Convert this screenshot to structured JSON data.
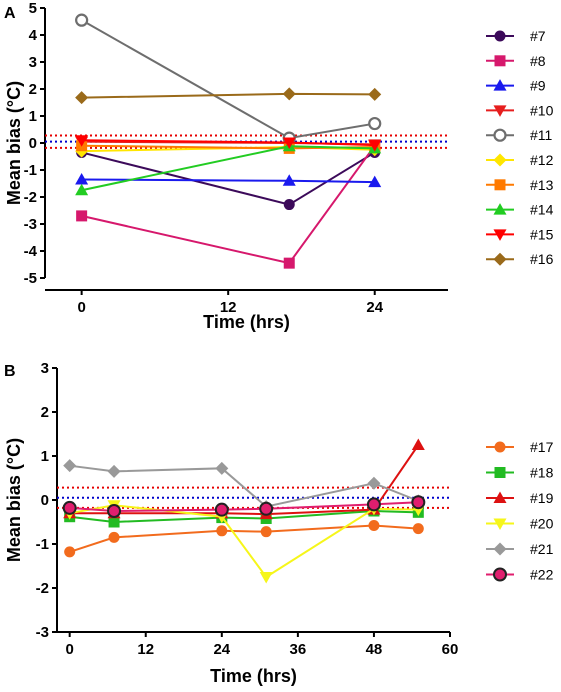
{
  "chart_data": [
    {
      "panel": "A",
      "type": "line",
      "xlabel": "Time (hrs)",
      "ylabel": "Mean bias (°C)",
      "xlim": [
        -3,
        30
      ],
      "ylim": [
        -5,
        5
      ],
      "xticks": [
        0,
        12,
        24
      ],
      "yticks": [
        -5,
        -4,
        -3,
        -2,
        -1,
        0,
        1,
        2,
        3,
        4,
        5
      ],
      "reference_lines": [
        {
          "y": 0.28,
          "color": "#e60000",
          "style": "dotted"
        },
        {
          "y": 0.05,
          "color": "#0000cc",
          "style": "dotted"
        },
        {
          "y": -0.18,
          "color": "#e60000",
          "style": "dotted"
        }
      ],
      "legend_position": "right",
      "series": [
        {
          "name": "#7",
          "color": "#3c0a5a",
          "marker": "circle",
          "x": [
            0,
            17,
            24
          ],
          "values": [
            -0.35,
            -2.28,
            -0.35
          ]
        },
        {
          "name": "#8",
          "color": "#d6186c",
          "marker": "square",
          "x": [
            0,
            17,
            24
          ],
          "values": [
            -2.7,
            -4.45,
            -0.1
          ]
        },
        {
          "name": "#9",
          "color": "#1a1aee",
          "marker": "triangle-up",
          "x": [
            0,
            17,
            24
          ],
          "values": [
            -1.35,
            -1.4,
            -1.45
          ]
        },
        {
          "name": "#10",
          "color": "#e61e1e",
          "marker": "triangle-down",
          "x": [
            0,
            17,
            24
          ],
          "values": [
            0.05,
            0.0,
            -0.05
          ]
        },
        {
          "name": "#11",
          "color": "#6e6e6e",
          "marker": "circle-open",
          "x": [
            0,
            17,
            24
          ],
          "values": [
            4.55,
            0.18,
            0.72
          ]
        },
        {
          "name": "#12",
          "color": "#ffe600",
          "marker": "diamond",
          "x": [
            0,
            17,
            24
          ],
          "values": [
            -0.3,
            -0.15,
            -0.25
          ]
        },
        {
          "name": "#13",
          "color": "#ff7a00",
          "marker": "square",
          "x": [
            0,
            17,
            24
          ],
          "values": [
            -0.1,
            -0.2,
            -0.15
          ]
        },
        {
          "name": "#14",
          "color": "#22cc22",
          "marker": "triangle-up",
          "x": [
            0,
            17,
            24
          ],
          "values": [
            -1.75,
            -0.12,
            -0.2
          ]
        },
        {
          "name": "#15",
          "color": "#ff0000",
          "marker": "triangle-down",
          "x": [
            0,
            17,
            24
          ],
          "values": [
            0.1,
            0.02,
            -0.08
          ]
        },
        {
          "name": "#16",
          "color": "#9a6a1a",
          "marker": "diamond",
          "x": [
            0,
            17,
            24
          ],
          "values": [
            1.68,
            1.82,
            1.8
          ]
        }
      ]
    },
    {
      "panel": "B",
      "type": "line",
      "xlabel": "Time (hrs)",
      "ylabel": "Mean bias (°C)",
      "xlim": [
        -2,
        60
      ],
      "ylim": [
        -3,
        3
      ],
      "xticks": [
        0,
        12,
        24,
        36,
        48,
        60
      ],
      "yticks": [
        -3,
        -2,
        -1,
        0,
        1,
        2,
        3
      ],
      "reference_lines": [
        {
          "y": 0.28,
          "color": "#e60000",
          "style": "dotted"
        },
        {
          "y": 0.05,
          "color": "#0000cc",
          "style": "dotted"
        },
        {
          "y": -0.18,
          "color": "#e60000",
          "style": "dotted"
        }
      ],
      "legend_position": "right",
      "series": [
        {
          "name": "#17",
          "color": "#f26b1d",
          "marker": "circle",
          "x": [
            0,
            7,
            24,
            31,
            48,
            55
          ],
          "values": [
            -1.18,
            -0.85,
            -0.7,
            -0.72,
            -0.58,
            -0.65
          ]
        },
        {
          "name": "#18",
          "color": "#22bb22",
          "marker": "square",
          "x": [
            0,
            7,
            24,
            31,
            48,
            55
          ],
          "values": [
            -0.38,
            -0.5,
            -0.4,
            -0.42,
            -0.25,
            -0.28
          ]
        },
        {
          "name": "#19",
          "color": "#dd1111",
          "marker": "triangle-up",
          "x": [
            0,
            7,
            24,
            31,
            48,
            55
          ],
          "values": [
            -0.3,
            -0.3,
            -0.3,
            -0.32,
            -0.22,
            1.25
          ]
        },
        {
          "name": "#20",
          "color": "#f6f61a",
          "marker": "triangle-down",
          "x": [
            0,
            7,
            24,
            31,
            48,
            55
          ],
          "values": [
            -0.3,
            -0.12,
            -0.38,
            -1.75,
            -0.2,
            -0.22
          ]
        },
        {
          "name": "#21",
          "color": "#999999",
          "marker": "diamond",
          "x": [
            0,
            7,
            24,
            31,
            48,
            55
          ],
          "values": [
            0.78,
            0.65,
            0.72,
            -0.15,
            0.38,
            -0.02
          ]
        },
        {
          "name": "#22",
          "color": "#e01e6e",
          "marker": "circle-outlined",
          "x": [
            0,
            7,
            24,
            31,
            48,
            55
          ],
          "values": [
            -0.18,
            -0.25,
            -0.22,
            -0.2,
            -0.1,
            -0.05
          ]
        }
      ]
    }
  ]
}
